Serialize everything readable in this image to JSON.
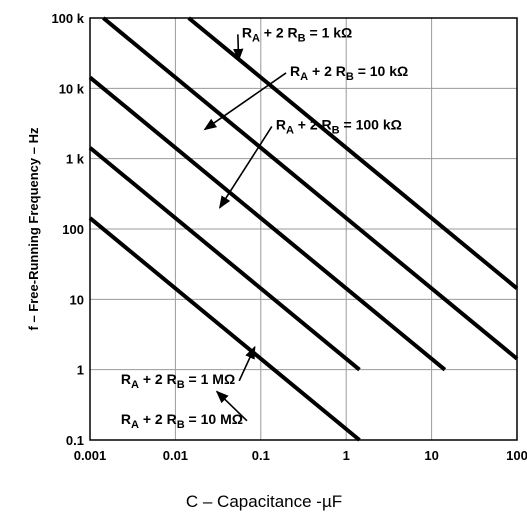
{
  "chart_data": {
    "type": "line",
    "xscale": "log",
    "yscale": "log",
    "xlim": [
      0.001,
      100
    ],
    "ylim": [
      0.1,
      100000
    ],
    "grid": true,
    "xlabel": "C – Capacitance -µF",
    "ylabel": "f – Free-Running Frequency – Hz",
    "x_ticks": [
      {
        "value": 0.001,
        "label": "0.001"
      },
      {
        "value": 0.01,
        "label": "0.01"
      },
      {
        "value": 0.1,
        "label": "0.1"
      },
      {
        "value": 1,
        "label": "1"
      },
      {
        "value": 10,
        "label": "10"
      },
      {
        "value": 100,
        "label": "100"
      }
    ],
    "y_ticks": [
      {
        "value": 0.1,
        "label": "0.1"
      },
      {
        "value": 1,
        "label": "1"
      },
      {
        "value": 10,
        "label": "10"
      },
      {
        "value": 100,
        "label": "100"
      },
      {
        "value": 1000,
        "label": "1 k"
      },
      {
        "value": 10000,
        "label": "10 k"
      },
      {
        "value": 100000,
        "label": "100 k"
      }
    ],
    "series": [
      {
        "x": [
          0.0143,
          100
        ],
        "y": [
          100000,
          14.3
        ]
      },
      {
        "x": [
          0.00143,
          100
        ],
        "y": [
          100000,
          1.43
        ]
      },
      {
        "x": [
          0.001,
          14.3
        ],
        "y": [
          14300,
          1
        ]
      },
      {
        "x": [
          0.001,
          1.43
        ],
        "y": [
          1430,
          1
        ]
      },
      {
        "x": [
          0.001,
          1.43
        ],
        "y": [
          143,
          0.1
        ]
      }
    ],
    "annotations": [
      {
        "main": "R",
        "sub1": "A",
        "mid": " + 2 R",
        "sub2": "B",
        "tail": " = 1 kΩ",
        "text_at": [
          0.06,
          53000
        ],
        "arrow_to": [
          0.055,
          25000
        ]
      },
      {
        "main": "R",
        "sub1": "A",
        "mid": " + 2 R",
        "sub2": "B",
        "tail": " = 10 kΩ",
        "text_at": [
          0.22,
          15000
        ],
        "arrow_to": [
          0.022,
          2600
        ]
      },
      {
        "main": "R",
        "sub1": "A",
        "mid": " + 2 R",
        "sub2": "B",
        "tail": " = 100 kΩ",
        "text_at": [
          0.15,
          2600
        ],
        "arrow_to": [
          0.033,
          200
        ]
      },
      {
        "main": "R",
        "sub1": "A",
        "mid": " + 2 R",
        "sub2": "B",
        "tail": " = 1 MΩ",
        "text_at": [
          0.0023,
          0.63
        ],
        "arrow_to": [
          0.085,
          2.1
        ]
      },
      {
        "main": "R",
        "sub1": "A",
        "mid": " + 2 R",
        "sub2": "B",
        "tail": " = 10 MΩ",
        "text_at": [
          0.0023,
          0.17
        ],
        "arrow_to": [
          0.0305,
          0.49
        ]
      }
    ]
  }
}
